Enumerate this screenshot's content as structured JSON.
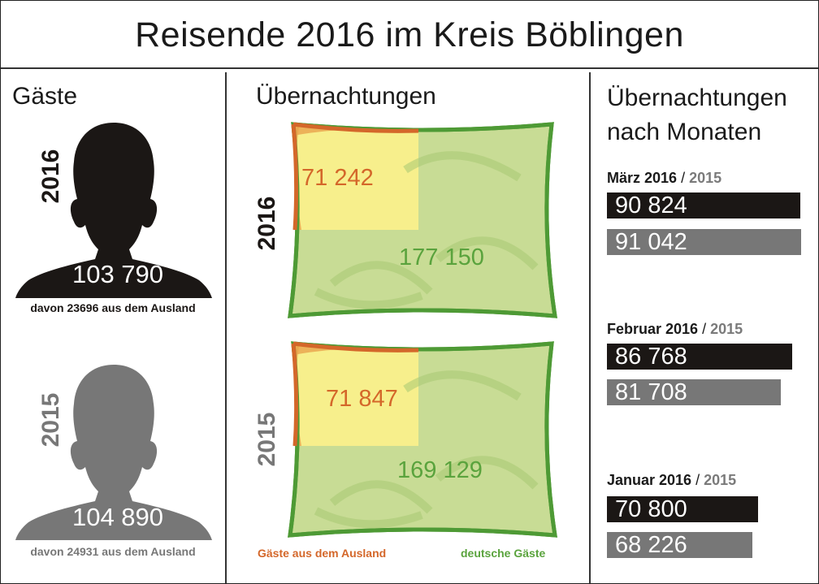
{
  "title": "Reisende 2016 im Kreis Böblingen",
  "colors": {
    "black": "#1b1715",
    "gray": "#777777",
    "foreign": "#d4672a",
    "domestic": "#5aa33d",
    "foreign_fill": "#f7ef8c",
    "domestic_fill": "#c8dc95"
  },
  "guests": {
    "heading": "Gäste",
    "y2016": {
      "year": "2016",
      "total": "103 790",
      "note": "davon 23696 aus dem Ausland",
      "icon": "person-silhouette-icon"
    },
    "y2015": {
      "year": "2015",
      "total": "104 890",
      "note": "davon 24931 aus dem Ausland",
      "icon": "person-silhouette-icon"
    }
  },
  "overnights": {
    "heading": "Übernachtungen",
    "y2016": {
      "year": "2016",
      "foreign": "71 242",
      "domestic": "177 150",
      "icon": "pillow-icon"
    },
    "y2015": {
      "year": "2015",
      "foreign": "71 847",
      "domestic": "169 129",
      "icon": "pillow-icon"
    },
    "legend": {
      "foreign": "Gäste aus dem Ausland",
      "domestic": "deutsche Gäste"
    }
  },
  "months": {
    "heading_line1": "Übernachtungen",
    "heading_line2": "nach Monaten",
    "slash": "/",
    "items": [
      {
        "month": "März 2016",
        "prev_year": "2015",
        "v2016": "90 824",
        "v2015": "91 042"
      },
      {
        "month": "Februar 2016",
        "prev_year": "2015",
        "v2016": "86 768",
        "v2015": "81 708"
      },
      {
        "month": "Januar 2016",
        "prev_year": "2015",
        "v2016": "70 800",
        "v2015": "68 226"
      }
    ]
  },
  "chart_data": [
    {
      "type": "table",
      "title": "Gäste",
      "categories": [
        "2016",
        "2015"
      ],
      "values": [
        103790,
        104890
      ],
      "foreign_values": [
        23696,
        24931
      ]
    },
    {
      "type": "area",
      "title": "Übernachtungen",
      "categories": [
        "2016",
        "2015"
      ],
      "series": [
        {
          "name": "Gäste aus dem Ausland",
          "values": [
            71242,
            71847
          ]
        },
        {
          "name": "deutsche Gäste",
          "values": [
            177150,
            169129
          ]
        }
      ]
    },
    {
      "type": "bar",
      "title": "Übernachtungen nach Monaten",
      "categories": [
        "März",
        "Februar",
        "Januar"
      ],
      "series": [
        {
          "name": "2016",
          "values": [
            90824,
            86768,
            70800
          ]
        },
        {
          "name": "2015",
          "values": [
            91042,
            81708,
            68226
          ]
        }
      ],
      "xlim": [
        0,
        91042
      ]
    }
  ]
}
